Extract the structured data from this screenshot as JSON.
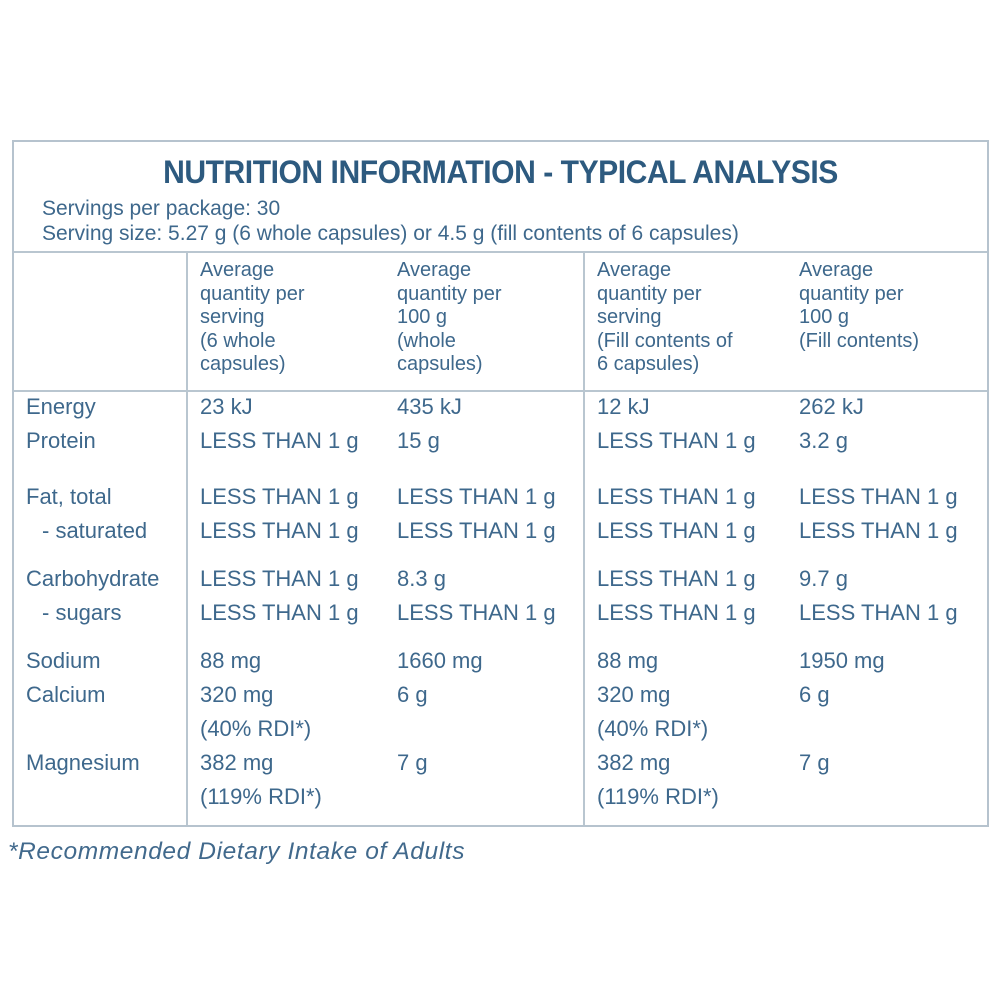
{
  "colors": {
    "title_text": "#2d5a7f",
    "body_text": "#3e688c",
    "table_lines": "#b9c6d0"
  },
  "title": "NUTRITION INFORMATION - TYPICAL ANALYSIS",
  "serving_info": {
    "servings_per_package": "Servings per package: 30",
    "serving_size": "Serving size: 5.27 g (6 whole capsules) or 4.5 g (fill contents of 6 capsules)"
  },
  "table": {
    "column_headers": [
      "Average\nquantity per\nserving\n(6 whole\ncapsules)",
      "Average\nquantity per\n100 g\n(whole\ncapsules)",
      "Average\nquantity per\nserving\n(Fill contents of\n6 capsules)",
      "Average\nquantity per\n100 g\n(Fill contents)"
    ],
    "rows": [
      {
        "label": "Energy",
        "values": [
          "23 kJ",
          "435 kJ",
          "12 kJ",
          "262 kJ"
        ]
      },
      {
        "label": "Protein",
        "values": [
          "LESS THAN 1 g",
          "15 g",
          "LESS THAN 1 g",
          "3.2 g"
        ]
      },
      {
        "label": "Fat, total",
        "values": [
          "LESS THAN 1 g",
          "LESS THAN 1 g",
          "LESS THAN 1 g",
          "LESS THAN 1 g"
        ]
      },
      {
        "label": "- saturated",
        "values": [
          "LESS THAN 1 g",
          "LESS THAN 1 g",
          "LESS THAN 1 g",
          "LESS THAN 1 g"
        ]
      },
      {
        "label": "Carbohydrate",
        "values": [
          "LESS THAN 1 g",
          "8.3 g",
          "LESS THAN 1 g",
          "9.7 g"
        ]
      },
      {
        "label": "- sugars",
        "values": [
          "LESS THAN 1 g",
          "LESS THAN 1 g",
          "LESS THAN 1 g",
          "LESS THAN 1 g"
        ]
      },
      {
        "label": "Sodium",
        "values": [
          "88 mg",
          "1660 mg",
          "88 mg",
          "1950 mg"
        ]
      },
      {
        "label": "Calcium",
        "values": [
          "320 mg\n(40% RDI*)",
          "6 g",
          "320 mg\n(40% RDI*)",
          "6 g"
        ]
      },
      {
        "label": "Magnesium",
        "values": [
          "382 mg\n(119% RDI*)",
          "7 g",
          "382 mg\n(119% RDI*)",
          "7 g"
        ]
      }
    ]
  },
  "footnote": "*Recommended Dietary Intake of Adults"
}
